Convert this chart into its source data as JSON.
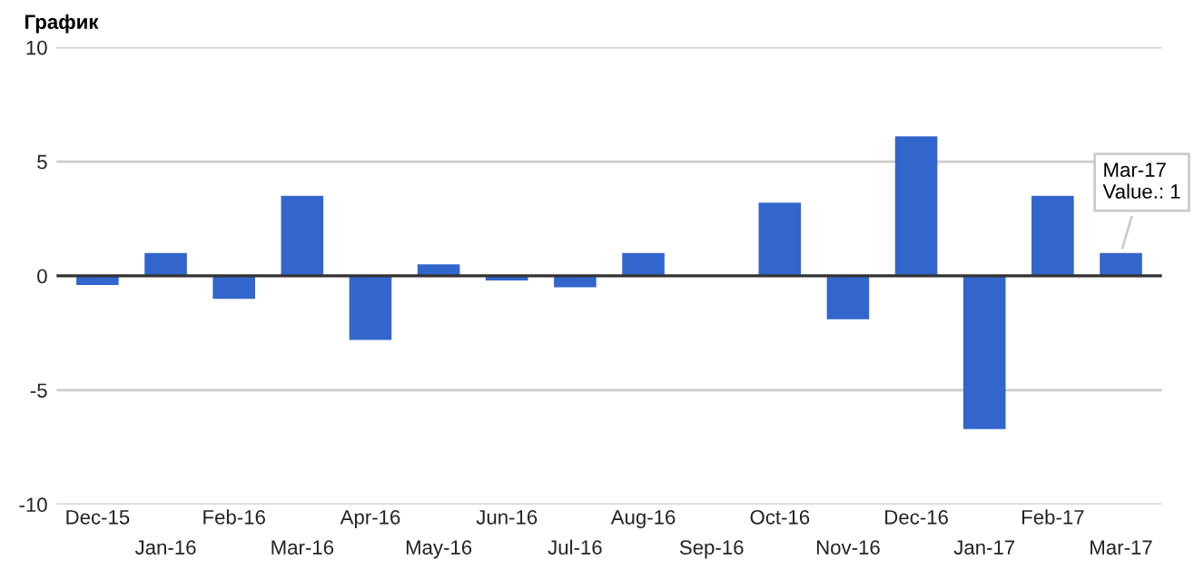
{
  "chart_data": {
    "type": "bar",
    "title": "График",
    "categories": [
      "Dec-15",
      "Jan-16",
      "Feb-16",
      "Mar-16",
      "Apr-16",
      "May-16",
      "Jun-16",
      "Jul-16",
      "Aug-16",
      "Sep-16",
      "Oct-16",
      "Nov-16",
      "Dec-16",
      "Jan-17",
      "Feb-17",
      "Mar-17"
    ],
    "values": [
      -0.4,
      1.0,
      -1.0,
      3.5,
      -2.8,
      0.5,
      -0.2,
      -0.5,
      1.0,
      0,
      3.2,
      -1.9,
      6.1,
      -6.7,
      3.5,
      1
    ],
    "color": "#3366cc",
    "ylim": [
      -10,
      10
    ],
    "yticks": [
      -10,
      -5,
      0,
      5,
      10
    ],
    "grid": "y",
    "annotations": [
      {
        "text": "Mar-17\nValue.: 1",
        "x": "Mar-17",
        "y": 1
      }
    ]
  }
}
